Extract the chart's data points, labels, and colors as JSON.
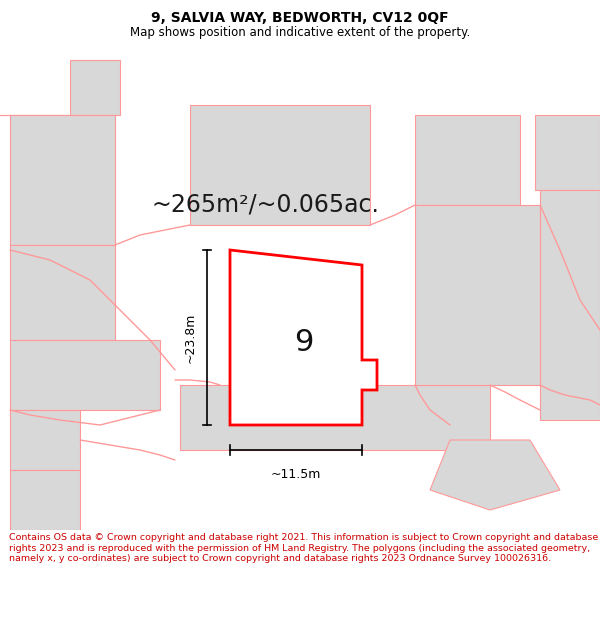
{
  "title": "9, SALVIA WAY, BEDWORTH, CV12 0QF",
  "subtitle": "Map shows position and indicative extent of the property.",
  "area_text": "~265m²/~0.065ac.",
  "label_number": "9",
  "dim_height": "~23.8m",
  "dim_width": "~11.5m",
  "footer": "Contains OS data © Crown copyright and database right 2021. This information is subject to Crown copyright and database rights 2023 and is reproduced with the permission of HM Land Registry. The polygons (including the associated geometry, namely x, y co-ordinates) are subject to Crown copyright and database rights 2023 Ordnance Survey 100026316.",
  "bg_color": "#ffffff",
  "map_bg": "#e8e8e8",
  "plot_fill": "#ffffff",
  "plot_border": "#ff0000",
  "neighbor_fill": "#d8d8d8",
  "neighbor_border": "#ff9999",
  "dim_color": "#000000",
  "title_color": "#000000",
  "footer_color": "#cc0000",
  "area_label_color": "#1a1a1a",
  "title_fontsize": 10,
  "subtitle_fontsize": 8.5,
  "area_fontsize": 17,
  "label_fontsize": 22,
  "dim_fontsize": 9,
  "footer_fontsize": 6.8
}
